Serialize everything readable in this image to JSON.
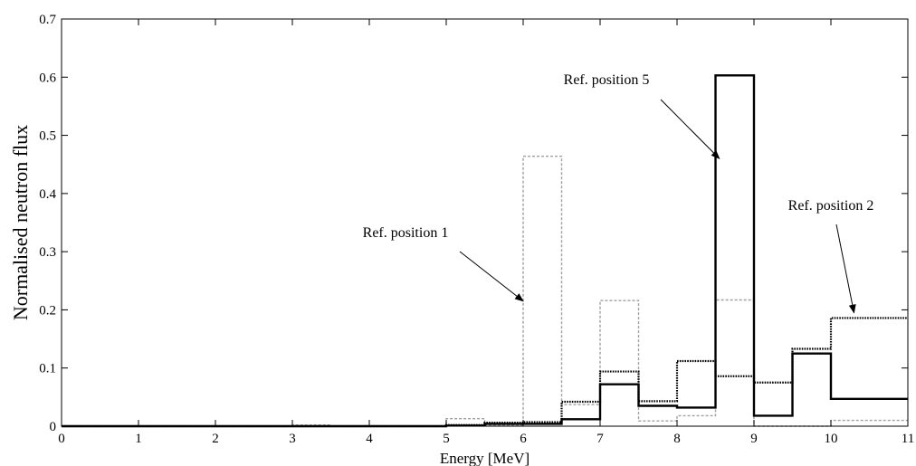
{
  "chart_data": {
    "type": "line",
    "step": true,
    "xlabel": "Energy [MeV]",
    "ylabel": "Normalised neutron flux",
    "xlim": [
      0,
      11
    ],
    "ylim": [
      0,
      0.7
    ],
    "xticks": [
      "0",
      "1",
      "2",
      "3",
      "4",
      "5",
      "6",
      "7",
      "8",
      "9",
      "10",
      "11"
    ],
    "yticks": [
      "0",
      "0.1",
      "0.2",
      "0.3",
      "0.4",
      "0.5",
      "0.6",
      "0.7"
    ],
    "grid": false,
    "bin_edges": [
      0,
      0.5,
      1,
      1.5,
      2,
      2.5,
      3,
      3.5,
      4,
      4.5,
      5,
      5.5,
      6,
      6.5,
      7,
      7.5,
      8,
      8.5,
      9,
      9.5,
      10,
      11
    ],
    "series": [
      {
        "label": "Ref. position 5",
        "style": "solid",
        "color": "#000000",
        "values": [
          0,
          0,
          0,
          0,
          0,
          0,
          0,
          0,
          0,
          0,
          0.001,
          0.004,
          0.004,
          0.012,
          0.072,
          0.035,
          0.032,
          0.603,
          0.018,
          0.125,
          0.047
        ]
      },
      {
        "label": "Ref. position 2",
        "style": "dotted",
        "color": "#000000",
        "values": [
          0,
          0,
          0,
          0,
          0,
          0,
          0,
          0,
          0,
          0,
          0.002,
          0.006,
          0.007,
          0.042,
          0.094,
          0.043,
          0.112,
          0.086,
          0.075,
          0.133,
          0.186
        ]
      },
      {
        "label": "Ref. position 1",
        "style": "dashed",
        "color": "#a0a0a0",
        "values": [
          0,
          0,
          0,
          0,
          0,
          0,
          0.002,
          0,
          0,
          0,
          0.013,
          0.002,
          0.464,
          0.037,
          0.216,
          0.009,
          0.018,
          0.217,
          0,
          0,
          0.01
        ]
      }
    ],
    "annotations": [
      {
        "text": "Ref. position 1",
        "arrow_to": [
          6,
          0.215
        ]
      },
      {
        "text": "Ref. position 5",
        "arrow_to": [
          8.55,
          0.46
        ]
      },
      {
        "text": "Ref. position 2",
        "arrow_to": [
          10.3,
          0.195
        ]
      }
    ]
  }
}
